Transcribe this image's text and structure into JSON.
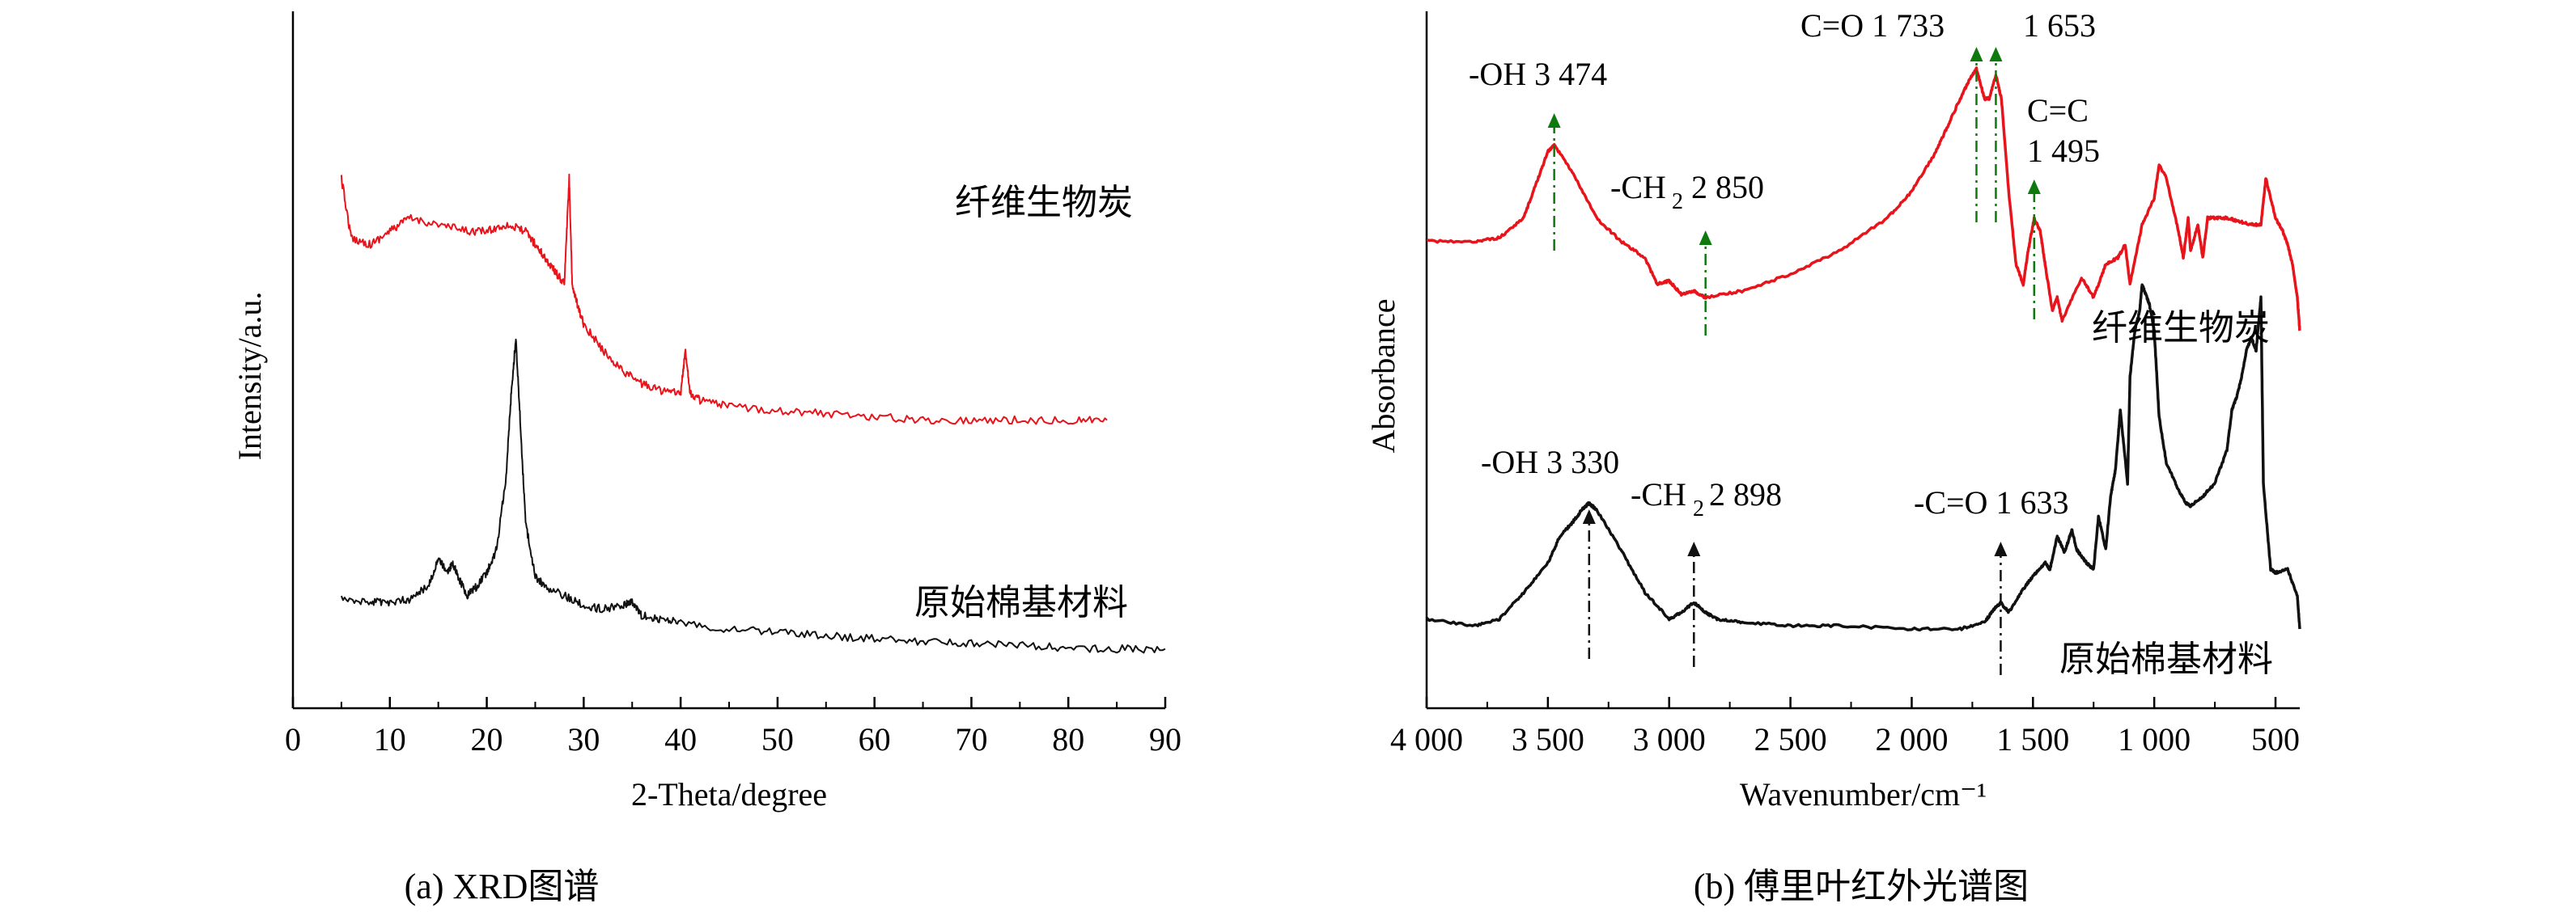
{
  "colors": {
    "red": "#e8141b",
    "black": "#111111",
    "green": "#0e7a0e"
  },
  "captions": {
    "a": "(a) XRD图谱",
    "b": "(b) 傅里叶红外光谱图"
  },
  "chart_data": [
    {
      "type": "line",
      "panel": "a",
      "xlabel": "2-Theta/degree",
      "ylabel": "Intensity/a.u.",
      "xlim": [
        0,
        90
      ],
      "x_ticks": [
        0,
        10,
        20,
        30,
        40,
        50,
        60,
        70,
        80,
        90
      ],
      "x_tick_labels": [
        "0",
        "10",
        "20",
        "30",
        "40",
        "50",
        "60",
        "70",
        "80",
        "90"
      ],
      "grid": false,
      "series": [
        {
          "name": "纤维生物炭",
          "color": "#e8141b",
          "x": [
            5,
            6,
            8,
            10,
            12,
            15,
            18,
            20,
            22,
            24,
            25,
            26,
            27,
            28,
            28.5,
            28.8,
            29.5,
            30,
            32,
            34,
            36,
            38,
            40,
            40.5,
            41,
            42,
            45,
            50,
            55,
            60,
            65,
            70,
            75,
            80,
            84
          ],
          "y": [
            0.78,
            0.69,
            0.68,
            0.7,
            0.72,
            0.71,
            0.7,
            0.7,
            0.71,
            0.7,
            0.68,
            0.66,
            0.64,
            0.62,
            0.78,
            0.62,
            0.58,
            0.56,
            0.52,
            0.49,
            0.47,
            0.46,
            0.455,
            0.52,
            0.455,
            0.445,
            0.435,
            0.43,
            0.425,
            0.42,
            0.415,
            0.415,
            0.415,
            0.415,
            0.415
          ]
        },
        {
          "name": "原始棉基材料",
          "color": "#111111",
          "x": [
            5,
            8,
            10,
            12,
            14,
            15,
            16,
            16.5,
            17,
            18,
            19,
            20,
            21,
            22,
            22.5,
            23,
            23.5,
            24,
            25,
            26,
            28,
            30,
            32,
            34,
            35,
            36,
            38,
            40,
            45,
            50,
            55,
            60,
            65,
            70,
            75,
            80,
            85,
            90
          ],
          "y": [
            0.145,
            0.14,
            0.14,
            0.145,
            0.165,
            0.205,
            0.185,
            0.2,
            0.18,
            0.15,
            0.165,
            0.185,
            0.22,
            0.33,
            0.45,
            0.54,
            0.4,
            0.26,
            0.18,
            0.165,
            0.15,
            0.135,
            0.13,
            0.135,
            0.14,
            0.12,
            0.115,
            0.11,
            0.1,
            0.095,
            0.09,
            0.085,
            0.08,
            0.078,
            0.075,
            0.072,
            0.07,
            0.07
          ]
        }
      ]
    },
    {
      "type": "line",
      "panel": "b",
      "xlabel": "Wavenumber/cm⁻¹",
      "ylabel": "Absorbance",
      "xlim": [
        4000,
        400
      ],
      "x_ticks": [
        4000,
        3500,
        3000,
        2500,
        2000,
        1500,
        1000,
        500
      ],
      "x_tick_labels": [
        "4 000",
        "3 500",
        "3 000",
        "2 500",
        "2 000",
        "1 500",
        "1 000",
        "500"
      ],
      "grid": false,
      "series": [
        {
          "name": "纤维生物炭",
          "color": "#e8141b",
          "x": [
            4000,
            3800,
            3700,
            3600,
            3550,
            3500,
            3474,
            3400,
            3300,
            3200,
            3100,
            3050,
            3000,
            2950,
            2900,
            2850,
            2700,
            2500,
            2300,
            2100,
            2000,
            1900,
            1850,
            1800,
            1760,
            1733,
            1700,
            1680,
            1653,
            1630,
            1600,
            1570,
            1540,
            1520,
            1495,
            1470,
            1450,
            1420,
            1400,
            1380,
            1300,
            1250,
            1200,
            1150,
            1120,
            1100,
            1050,
            1000,
            980,
            950,
            900,
            880,
            860,
            850,
            820,
            800,
            780,
            750,
            700,
            650,
            600,
            560,
            540,
            500,
            470,
            450,
            430,
            410,
            400
          ],
          "y": [
            0.685,
            0.685,
            0.69,
            0.72,
            0.77,
            0.82,
            0.83,
            0.79,
            0.72,
            0.685,
            0.66,
            0.62,
            0.625,
            0.605,
            0.61,
            0.6,
            0.61,
            0.635,
            0.67,
            0.72,
            0.76,
            0.82,
            0.86,
            0.9,
            0.93,
            0.945,
            0.9,
            0.9,
            0.935,
            0.9,
            0.76,
            0.65,
            0.62,
            0.67,
            0.72,
            0.7,
            0.65,
            0.58,
            0.6,
            0.565,
            0.63,
            0.6,
            0.65,
            0.66,
            0.68,
            0.62,
            0.71,
            0.75,
            0.8,
            0.78,
            0.7,
            0.66,
            0.72,
            0.67,
            0.71,
            0.66,
            0.72,
            0.72,
            0.72,
            0.715,
            0.71,
            0.71,
            0.78,
            0.72,
            0.7,
            0.68,
            0.65,
            0.6,
            0.55
          ]
        },
        {
          "name": "原始棉基材料",
          "color": "#111111",
          "x": [
            4000,
            3800,
            3700,
            3600,
            3500,
            3450,
            3400,
            3360,
            3330,
            3300,
            3200,
            3100,
            3000,
            2950,
            2898,
            2850,
            2800,
            2700,
            2500,
            2300,
            2000,
            1800,
            1700,
            1660,
            1633,
            1600,
            1550,
            1500,
            1450,
            1430,
            1400,
            1370,
            1340,
            1320,
            1300,
            1280,
            1250,
            1230,
            1200,
            1180,
            1160,
            1140,
            1110,
            1100,
            1080,
            1060,
            1050,
            1030,
            1020,
            1000,
            980,
            950,
            900,
            870,
            850,
            800,
            750,
            700,
            680,
            660,
            640,
            620,
            600,
            580,
            560,
            550,
            520,
            500,
            450,
            410,
            400
          ],
          "y": [
            0.115,
            0.105,
            0.115,
            0.155,
            0.2,
            0.24,
            0.26,
            0.28,
            0.29,
            0.28,
            0.22,
            0.155,
            0.115,
            0.125,
            0.14,
            0.125,
            0.115,
            0.11,
            0.105,
            0.105,
            0.1,
            0.1,
            0.11,
            0.13,
            0.14,
            0.125,
            0.155,
            0.18,
            0.2,
            0.19,
            0.24,
            0.215,
            0.25,
            0.22,
            0.21,
            0.2,
            0.19,
            0.27,
            0.22,
            0.3,
            0.34,
            0.43,
            0.32,
            0.48,
            0.55,
            0.58,
            0.62,
            0.6,
            0.59,
            0.55,
            0.42,
            0.35,
            0.31,
            0.29,
            0.285,
            0.3,
            0.32,
            0.37,
            0.43,
            0.45,
            0.48,
            0.52,
            0.54,
            0.52,
            0.6,
            0.32,
            0.19,
            0.185,
            0.19,
            0.15,
            0.1
          ]
        }
      ],
      "annotations": [
        {
          "text": "-OH 3 474",
          "series": "纤维生物炭",
          "color": "#0e7a0e"
        },
        {
          "text": "-CH₂ 2 850",
          "series": "纤维生物炭",
          "color": "#0e7a0e"
        },
        {
          "text": "C=O  1 733",
          "series": "纤维生物炭",
          "color": "#0e7a0e"
        },
        {
          "text": "1 653",
          "series": "纤维生物炭",
          "color": "#0e7a0e"
        },
        {
          "text": "C=C",
          "series": "纤维生物炭",
          "color": "#0e7a0e"
        },
        {
          "text": "1 495",
          "series": "纤维生物炭",
          "color": "#0e7a0e"
        },
        {
          "text": "-OH 3 330",
          "series": "原始棉基材料",
          "color": "#111111"
        },
        {
          "text": "-CH₂ 2 898",
          "series": "原始棉基材料",
          "color": "#111111"
        },
        {
          "text": "-C=O 1 633",
          "series": "原始棉基材料",
          "color": "#111111"
        }
      ]
    }
  ]
}
